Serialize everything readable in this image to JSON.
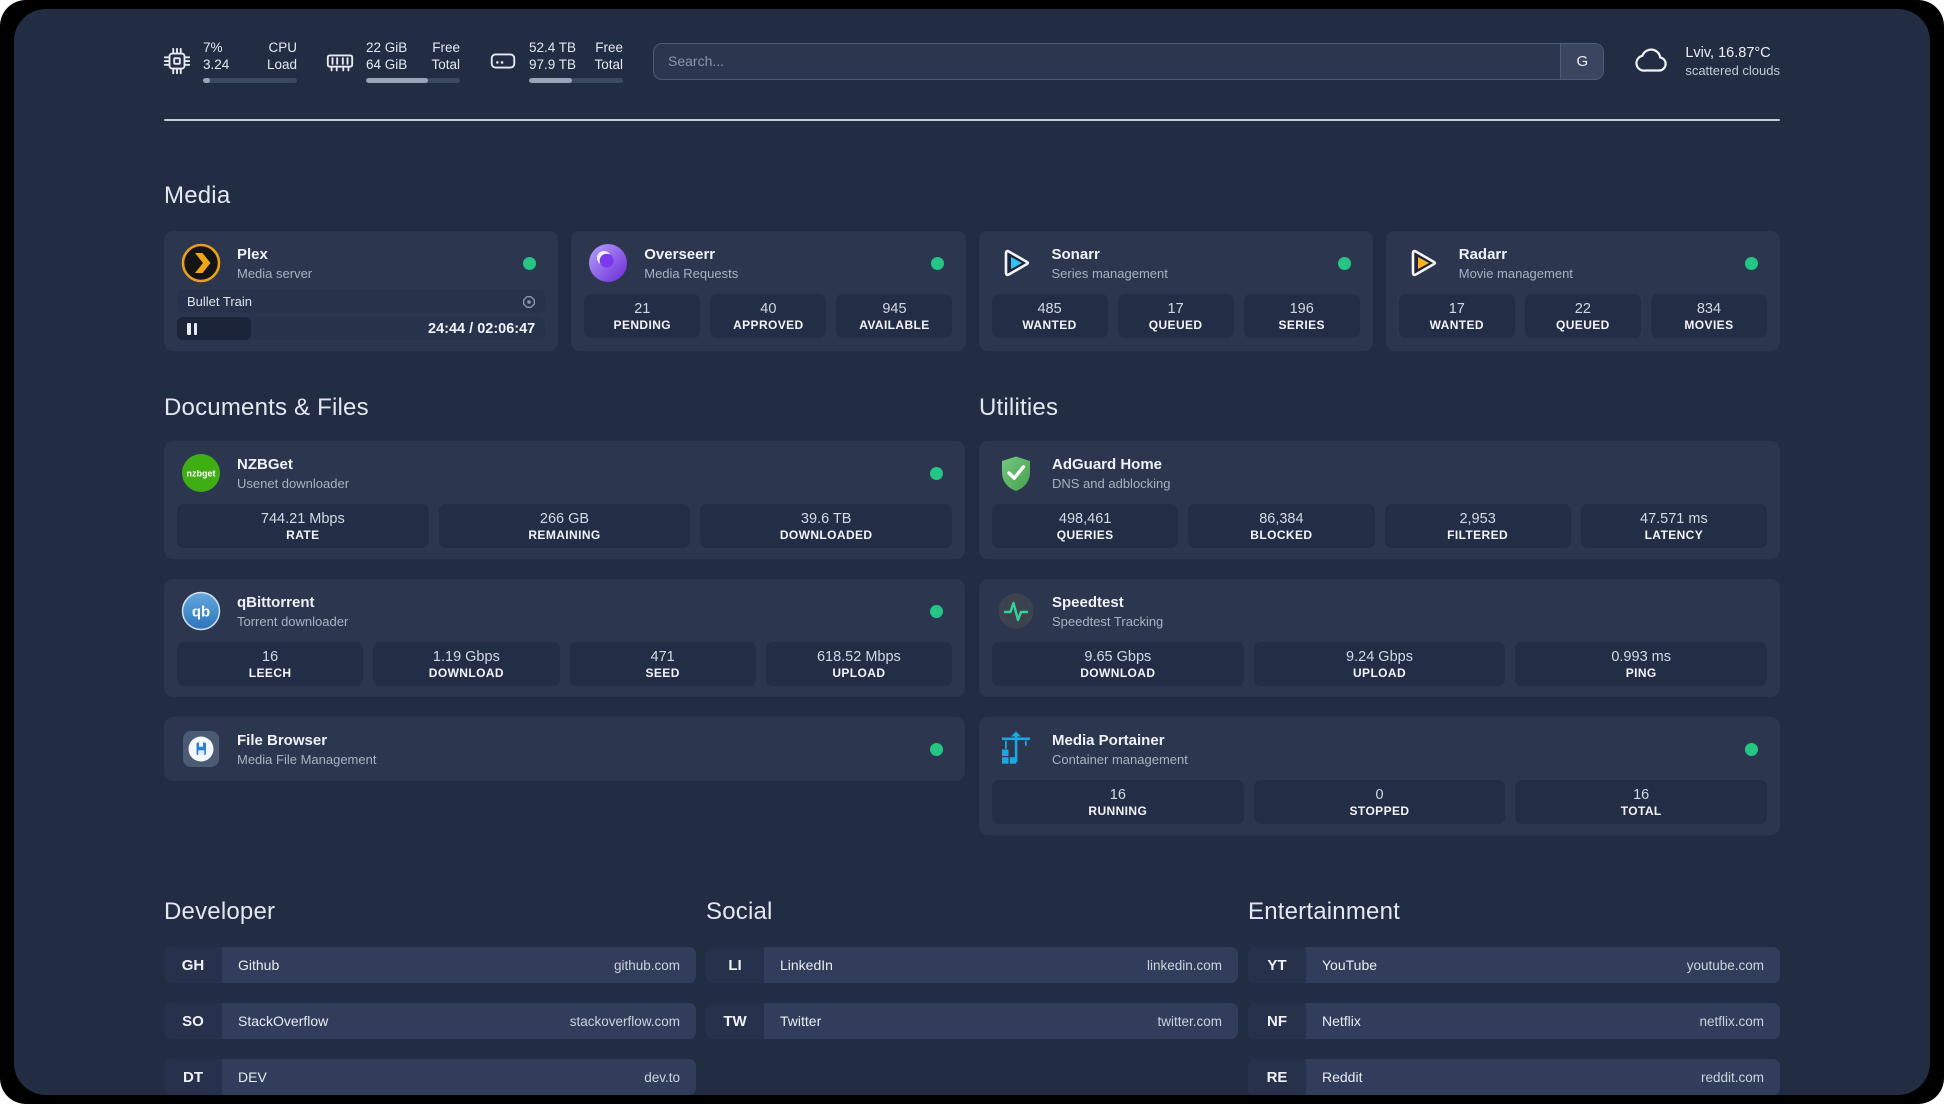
{
  "app": {
    "status_color": "#25c685"
  },
  "header": {
    "resources": [
      {
        "name": "cpu",
        "values": [
          "7%",
          "3.24"
        ],
        "labels": [
          "CPU",
          "Load"
        ],
        "progress_pct": 7
      },
      {
        "name": "memory",
        "values": [
          "22 GiB",
          "64 GiB"
        ],
        "labels": [
          "Free",
          "Total"
        ],
        "progress_pct": 66
      },
      {
        "name": "disk",
        "values": [
          "52.4 TB",
          "97.9 TB"
        ],
        "labels": [
          "Free",
          "Total"
        ],
        "progress_pct": 46
      }
    ],
    "search": {
      "placeholder": "Search...",
      "provider_button": "G"
    },
    "weather": {
      "location_temp": "Lviv, 16.87°C",
      "condition": "scattered clouds"
    }
  },
  "media": {
    "title": "Media",
    "plex": {
      "name": "Plex",
      "description": "Media server",
      "widget": {
        "title": "Bullet Train",
        "state": "paused",
        "time": "24:44 / 02:06:47"
      }
    },
    "overseerr": {
      "name": "Overseerr",
      "description": "Media Requests",
      "stats": [
        {
          "value": "21",
          "label": "PENDING"
        },
        {
          "value": "40",
          "label": "APPROVED"
        },
        {
          "value": "945",
          "label": "AVAILABLE"
        }
      ]
    },
    "sonarr": {
      "name": "Sonarr",
      "description": "Series management",
      "stats": [
        {
          "value": "485",
          "label": "WANTED"
        },
        {
          "value": "17",
          "label": "QUEUED"
        },
        {
          "value": "196",
          "label": "SERIES"
        }
      ]
    },
    "radarr": {
      "name": "Radarr",
      "description": "Movie management",
      "stats": [
        {
          "value": "17",
          "label": "WANTED"
        },
        {
          "value": "22",
          "label": "QUEUED"
        },
        {
          "value": "834",
          "label": "MOVIES"
        }
      ]
    }
  },
  "documents": {
    "title": "Documents & Files",
    "nzbget": {
      "name": "NZBGet",
      "description": "Usenet downloader",
      "stats": [
        {
          "value": "744.21 Mbps",
          "label": "RATE"
        },
        {
          "value": "266 GB",
          "label": "REMAINING"
        },
        {
          "value": "39.6 TB",
          "label": "DOWNLOADED"
        }
      ]
    },
    "qbittorrent": {
      "name": "qBittorrent",
      "description": "Torrent downloader",
      "stats": [
        {
          "value": "16",
          "label": "LEECH"
        },
        {
          "value": "1.19 Gbps",
          "label": "DOWNLOAD"
        },
        {
          "value": "471",
          "label": "SEED"
        },
        {
          "value": "618.52 Mbps",
          "label": "UPLOAD"
        }
      ]
    },
    "filebrowser": {
      "name": "File Browser",
      "description": "Media File Management"
    }
  },
  "utilities": {
    "title": "Utilities",
    "adguard": {
      "name": "AdGuard Home",
      "description": "DNS and adblocking",
      "stats": [
        {
          "value": "498,461",
          "label": "QUERIES"
        },
        {
          "value": "86,384",
          "label": "BLOCKED"
        },
        {
          "value": "2,953",
          "label": "FILTERED"
        },
        {
          "value": "47.571 ms",
          "label": "LATENCY"
        }
      ]
    },
    "speedtest": {
      "name": "Speedtest",
      "description": "Speedtest Tracking",
      "stats": [
        {
          "value": "9.65 Gbps",
          "label": "DOWNLOAD"
        },
        {
          "value": "9.24 Gbps",
          "label": "UPLOAD"
        },
        {
          "value": "0.993 ms",
          "label": "PING"
        }
      ]
    },
    "portainer": {
      "name": "Media Portainer",
      "description": "Container management",
      "stats": [
        {
          "value": "16",
          "label": "RUNNING"
        },
        {
          "value": "0",
          "label": "STOPPED"
        },
        {
          "value": "16",
          "label": "TOTAL"
        }
      ]
    }
  },
  "bookmarks": [
    {
      "title": "Developer",
      "links": [
        {
          "abbr": "GH",
          "name": "Github",
          "url": "github.com"
        },
        {
          "abbr": "SO",
          "name": "StackOverflow",
          "url": "stackoverflow.com"
        },
        {
          "abbr": "DT",
          "name": "DEV",
          "url": "dev.to"
        }
      ]
    },
    {
      "title": "Social",
      "links": [
        {
          "abbr": "LI",
          "name": "LinkedIn",
          "url": "linkedin.com"
        },
        {
          "abbr": "TW",
          "name": "Twitter",
          "url": "twitter.com"
        }
      ]
    },
    {
      "title": "Entertainment",
      "links": [
        {
          "abbr": "YT",
          "name": "YouTube",
          "url": "youtube.com"
        },
        {
          "abbr": "NF",
          "name": "Netflix",
          "url": "netflix.com"
        },
        {
          "abbr": "RE",
          "name": "Reddit",
          "url": "reddit.com"
        }
      ]
    }
  ]
}
